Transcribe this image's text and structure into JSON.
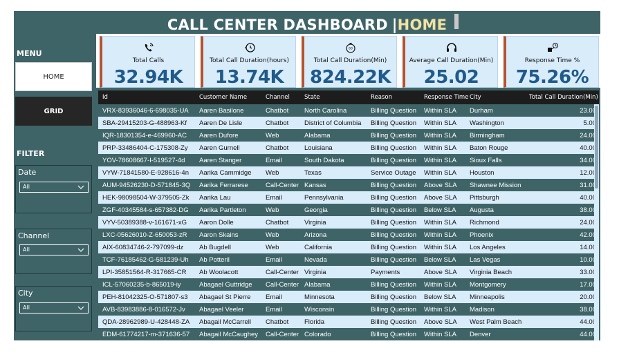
{
  "header": {
    "title": "CALL CENTER DASHBOARD",
    "separator": "|",
    "section": "HOME"
  },
  "sidebar": {
    "menu_label": "MENU",
    "home_label": "HOME",
    "grid_label": "GRID",
    "filter_label": "FILTER",
    "filters": [
      {
        "label": "Date",
        "value": "All"
      },
      {
        "label": "Channel",
        "value": "All"
      },
      {
        "label": "City",
        "value": "All"
      }
    ]
  },
  "kpis": [
    {
      "label": "Total Calls",
      "value": "32.94K",
      "icon": "phone-ring-icon"
    },
    {
      "label": "Total Call Duration(hours)",
      "value": "13.74K",
      "icon": "clock-history-icon"
    },
    {
      "label": "Total Call Duration(Min)",
      "value": "824.22K",
      "icon": "stopwatch-60-icon"
    },
    {
      "label": "Average Call Duration(Min)",
      "value": "25.02",
      "icon": "headset-icon"
    },
    {
      "label": "Response Time %",
      "value": "75.26%",
      "icon": "response-time-icon"
    }
  ],
  "table": {
    "columns": [
      "Id",
      "Customer Name",
      "Channel",
      "State",
      "Reason",
      "Response Time",
      "City",
      "Total Call Duration(Min)"
    ],
    "rows": [
      [
        "VRX-83936046-6-698035-UA",
        "Aaren Basilone",
        "Chatbot",
        "North Carolina",
        "Billing Question",
        "Within SLA",
        "Durham",
        "23.00"
      ],
      [
        "SBA-29415203-G-488963-Kf",
        "Aaren De Lisle",
        "Chatbot",
        "District of Columbia",
        "Billing Question",
        "Within SLA",
        "Washington",
        "5.00"
      ],
      [
        "IQR-18301354-e-469960-AC",
        "Aaren Dufore",
        "Web",
        "Alabama",
        "Billing Question",
        "Within SLA",
        "Birmingham",
        "24.00"
      ],
      [
        "PRP-33486404-C-175308-Zy",
        "Aaren Gurnell",
        "Chatbot",
        "Louisiana",
        "Billing Question",
        "Within SLA",
        "Baton Rouge",
        "40.00"
      ],
      [
        "YOV-78608667-I-519527-4d",
        "Aaren Stanger",
        "Email",
        "South Dakota",
        "Billing Question",
        "Within SLA",
        "Sioux Falls",
        "34.00"
      ],
      [
        "VYW-71841580-E-928616-4n",
        "Aarika Cammidge",
        "Web",
        "Texas",
        "Service Outage",
        "Within SLA",
        "Houston",
        "12.00"
      ],
      [
        "AUM-94526230-D-571845-3Q",
        "Aarika Ferrarese",
        "Call-Center",
        "Kansas",
        "Billing Question",
        "Above SLA",
        "Shawnee Mission",
        "31.00"
      ],
      [
        "HEK-98098504-W-379505-Zk",
        "Aarika Lau",
        "Email",
        "Pennsylvania",
        "Billing Question",
        "Above SLA",
        "Pittsburgh",
        "40.00"
      ],
      [
        "ZGF-40345584-s-657382-DG",
        "Aarika Partleton",
        "Web",
        "Georgia",
        "Billing Question",
        "Below SLA",
        "Augusta",
        "38.00"
      ],
      [
        "VYV-50389388-v-161671-xG",
        "Aaron Dolle",
        "Chatbot",
        "Virginia",
        "Billing Question",
        "Within SLA",
        "Richmond",
        "24.00"
      ],
      [
        "LXC-05626010-Z-650053-zR",
        "Aaron Skains",
        "Web",
        "Arizona",
        "Billing Question",
        "Within SLA",
        "Phoenix",
        "42.00"
      ],
      [
        "AIX-60834746-2-797099-dz",
        "Ab Bugdell",
        "Web",
        "California",
        "Billing Question",
        "Within SLA",
        "Los Angeles",
        "14.00"
      ],
      [
        "TCF-76185462-G-581239-Uh",
        "Ab Potteril",
        "Email",
        "Nevada",
        "Billing Question",
        "Below SLA",
        "Las Vegas",
        "10.00"
      ],
      [
        "LPI-35851564-R-317665-CR",
        "Ab Woolacott",
        "Call-Center",
        "Virginia",
        "Payments",
        "Above SLA",
        "Virginia Beach",
        "33.00"
      ],
      [
        "ICL-57060235-b-865019-iy",
        "Abagael Guttridge",
        "Call-Center",
        "Alabama",
        "Billing Question",
        "Within SLA",
        "Montgomery",
        "17.00"
      ],
      [
        "PEH-81042325-O-571807-s3",
        "Abagael St Pierre",
        "Email",
        "Minnesota",
        "Billing Question",
        "Below SLA",
        "Minneapolis",
        "20.00"
      ],
      [
        "AVB-83983886-8-016572-Jv",
        "Abagael Veeler",
        "Email",
        "Wisconsin",
        "Billing Question",
        "Within SLA",
        "Madison",
        "38.00"
      ],
      [
        "QDA-28962989-U-428448-ZA",
        "Abagail McCarrell",
        "Chatbot",
        "Florida",
        "Billing Question",
        "Above SLA",
        "West Palm Beach",
        "44.00"
      ],
      [
        "EDM-61774217-m-371636-57",
        "Abagail McCaughey",
        "Call-Center",
        "Colorado",
        "Billing Question",
        "Within SLA",
        "Denver",
        "44.00"
      ]
    ]
  },
  "colors": {
    "panel": "#3f6468",
    "kpi_bg": "#d9ecfa",
    "kpi_accent": "#b5532e",
    "kpi_value": "#1f5a8a",
    "header_highlight": "#f2e3a3"
  }
}
